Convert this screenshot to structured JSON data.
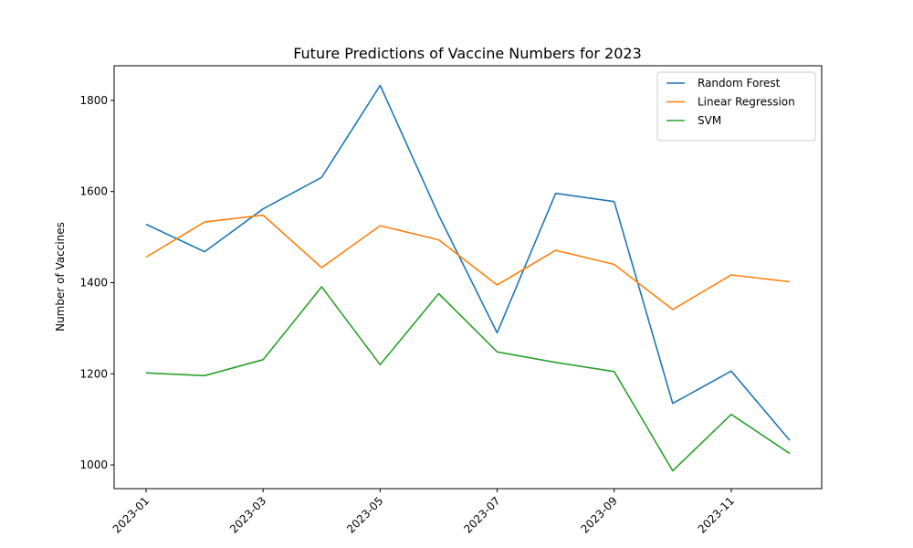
{
  "chart_data": {
    "type": "line",
    "title": "Future Predictions of Vaccine Numbers for 2023",
    "xlabel": "",
    "ylabel": "Number of Vaccines",
    "x": [
      "2023-01",
      "2023-02",
      "2023-03",
      "2023-04",
      "2023-05",
      "2023-06",
      "2023-07",
      "2023-08",
      "2023-09",
      "2023-10",
      "2023-11",
      "2023-12"
    ],
    "x_ticks": [
      "2023-01",
      "2023-03",
      "2023-05",
      "2023-07",
      "2023-09",
      "2023-11"
    ],
    "y_ticks": [
      1000,
      1200,
      1400,
      1600,
      1800
    ],
    "ylim": [
      948,
      1876
    ],
    "grid": false,
    "legend_position": "top-right",
    "series": [
      {
        "name": "Random Forest",
        "color": "#1f77b4",
        "values": [
          1528,
          1468,
          1562,
          1631,
          1833,
          1548,
          1290,
          1596,
          1578,
          1135,
          1206,
          1054
        ]
      },
      {
        "name": "Linear Regression",
        "color": "#ff7f0e",
        "values": [
          1456,
          1533,
          1548,
          1433,
          1525,
          1494,
          1395,
          1471,
          1440,
          1341,
          1417,
          1402
        ]
      },
      {
        "name": "SVM",
        "color": "#2ca02c",
        "values": [
          1202,
          1196,
          1231,
          1391,
          1220,
          1376,
          1248,
          1225,
          1205,
          987,
          1111,
          1025
        ]
      }
    ]
  }
}
